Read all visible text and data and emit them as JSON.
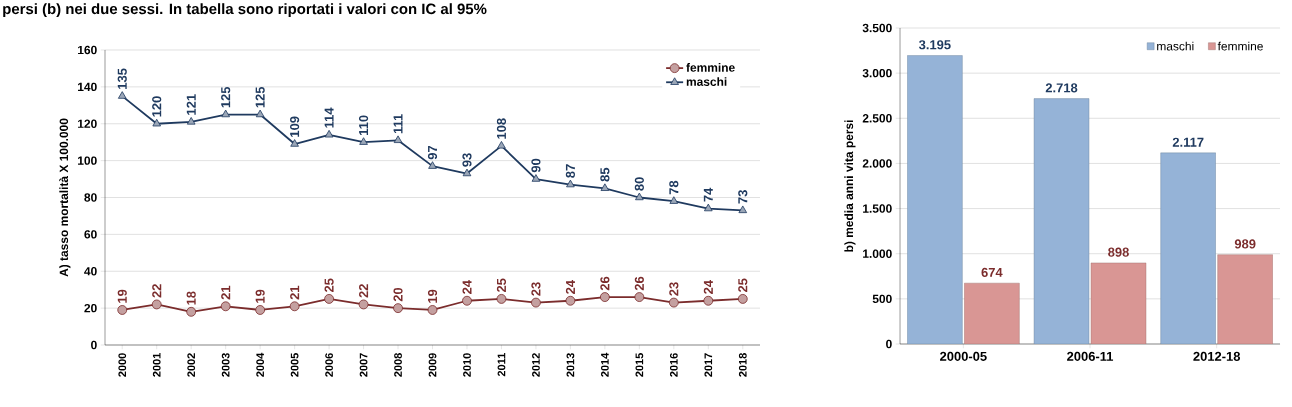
{
  "chart_data": [
    {
      "type": "line",
      "title": "persi (b) nei due sessi. In tabella sono riportati i valori con IC al 95%",
      "ylabel": "A) tasso mortalità X 100.000",
      "categories": [
        "2000",
        "2001",
        "2002",
        "2003",
        "2004",
        "2005",
        "2006",
        "2007",
        "2008",
        "2009",
        "2010",
        "2011",
        "2012",
        "2013",
        "2014",
        "2015",
        "2016",
        "2017",
        "2018"
      ],
      "series": [
        {
          "name": "femmine",
          "color": "#7b2c2c",
          "marker": "circle",
          "values": [
            19,
            22,
            18,
            21,
            19,
            21,
            25,
            22,
            20,
            19,
            24,
            25,
            23,
            24,
            26,
            26,
            23,
            24,
            25
          ]
        },
        {
          "name": "maschi",
          "color": "#1f3a5f",
          "marker": "triangle",
          "values": [
            135,
            120,
            121,
            125,
            125,
            109,
            114,
            110,
            111,
            97,
            93,
            108,
            90,
            87,
            85,
            80,
            78,
            74,
            73
          ]
        }
      ],
      "ylim": [
        0,
        160
      ],
      "yticks": [
        0,
        20,
        40,
        60,
        80,
        100,
        120,
        140,
        160
      ],
      "grid": "y",
      "legend": "top right",
      "data_labels": true
    },
    {
      "type": "bar",
      "ylabel": "b) media anni vita persi",
      "categories": [
        "2000-05",
        "2006-11",
        "2012-18"
      ],
      "series": [
        {
          "name": "maschi",
          "color": "#95b3d7",
          "values": [
            3195,
            2718,
            2117
          ],
          "value_labels": [
            "3.195",
            "2.718",
            "2.117"
          ]
        },
        {
          "name": "femmine",
          "color": "#d99694",
          "values": [
            674,
            898,
            989
          ],
          "value_labels": [
            "674",
            "898",
            "989"
          ]
        }
      ],
      "ylim": [
        0,
        3500
      ],
      "yticks": [
        0,
        {
          "value": 500,
          "label": "500"
        },
        {
          "value": 1000,
          "label": "1.000"
        },
        {
          "value": 1500,
          "label": "1.500"
        },
        {
          "value": 2000,
          "label": "2.000"
        },
        {
          "value": 2500,
          "label": "2.500"
        },
        {
          "value": 3000,
          "label": "3.000"
        },
        {
          "value": 3500,
          "label": "3.500"
        }
      ],
      "grid": "y",
      "legend": "top right"
    }
  ]
}
